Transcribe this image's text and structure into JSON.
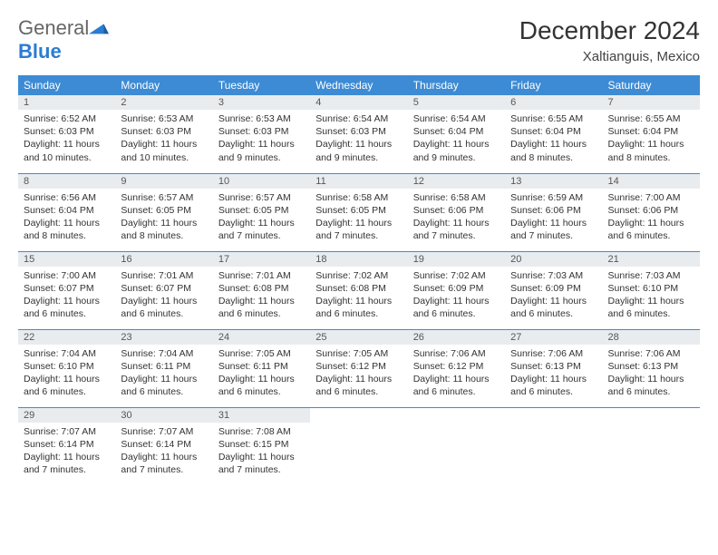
{
  "brand": {
    "general": "General",
    "blue": "Blue"
  },
  "title": "December 2024",
  "location": "Xaltianguis, Mexico",
  "colors": {
    "header_bg": "#3d8bd4",
    "header_text": "#ffffff",
    "daynum_bg": "#e9ecef",
    "rule": "#3d8bd4",
    "logo_blue": "#2b7cd3",
    "body_text": "#333333"
  },
  "weekdays": [
    "Sunday",
    "Monday",
    "Tuesday",
    "Wednesday",
    "Thursday",
    "Friday",
    "Saturday"
  ],
  "weeks": [
    [
      {
        "d": "1",
        "sr": "Sunrise: 6:52 AM",
        "ss": "Sunset: 6:03 PM",
        "dl1": "Daylight: 11 hours",
        "dl2": "and 10 minutes."
      },
      {
        "d": "2",
        "sr": "Sunrise: 6:53 AM",
        "ss": "Sunset: 6:03 PM",
        "dl1": "Daylight: 11 hours",
        "dl2": "and 10 minutes."
      },
      {
        "d": "3",
        "sr": "Sunrise: 6:53 AM",
        "ss": "Sunset: 6:03 PM",
        "dl1": "Daylight: 11 hours",
        "dl2": "and 9 minutes."
      },
      {
        "d": "4",
        "sr": "Sunrise: 6:54 AM",
        "ss": "Sunset: 6:03 PM",
        "dl1": "Daylight: 11 hours",
        "dl2": "and 9 minutes."
      },
      {
        "d": "5",
        "sr": "Sunrise: 6:54 AM",
        "ss": "Sunset: 6:04 PM",
        "dl1": "Daylight: 11 hours",
        "dl2": "and 9 minutes."
      },
      {
        "d": "6",
        "sr": "Sunrise: 6:55 AM",
        "ss": "Sunset: 6:04 PM",
        "dl1": "Daylight: 11 hours",
        "dl2": "and 8 minutes."
      },
      {
        "d": "7",
        "sr": "Sunrise: 6:55 AM",
        "ss": "Sunset: 6:04 PM",
        "dl1": "Daylight: 11 hours",
        "dl2": "and 8 minutes."
      }
    ],
    [
      {
        "d": "8",
        "sr": "Sunrise: 6:56 AM",
        "ss": "Sunset: 6:04 PM",
        "dl1": "Daylight: 11 hours",
        "dl2": "and 8 minutes."
      },
      {
        "d": "9",
        "sr": "Sunrise: 6:57 AM",
        "ss": "Sunset: 6:05 PM",
        "dl1": "Daylight: 11 hours",
        "dl2": "and 8 minutes."
      },
      {
        "d": "10",
        "sr": "Sunrise: 6:57 AM",
        "ss": "Sunset: 6:05 PM",
        "dl1": "Daylight: 11 hours",
        "dl2": "and 7 minutes."
      },
      {
        "d": "11",
        "sr": "Sunrise: 6:58 AM",
        "ss": "Sunset: 6:05 PM",
        "dl1": "Daylight: 11 hours",
        "dl2": "and 7 minutes."
      },
      {
        "d": "12",
        "sr": "Sunrise: 6:58 AM",
        "ss": "Sunset: 6:06 PM",
        "dl1": "Daylight: 11 hours",
        "dl2": "and 7 minutes."
      },
      {
        "d": "13",
        "sr": "Sunrise: 6:59 AM",
        "ss": "Sunset: 6:06 PM",
        "dl1": "Daylight: 11 hours",
        "dl2": "and 7 minutes."
      },
      {
        "d": "14",
        "sr": "Sunrise: 7:00 AM",
        "ss": "Sunset: 6:06 PM",
        "dl1": "Daylight: 11 hours",
        "dl2": "and 6 minutes."
      }
    ],
    [
      {
        "d": "15",
        "sr": "Sunrise: 7:00 AM",
        "ss": "Sunset: 6:07 PM",
        "dl1": "Daylight: 11 hours",
        "dl2": "and 6 minutes."
      },
      {
        "d": "16",
        "sr": "Sunrise: 7:01 AM",
        "ss": "Sunset: 6:07 PM",
        "dl1": "Daylight: 11 hours",
        "dl2": "and 6 minutes."
      },
      {
        "d": "17",
        "sr": "Sunrise: 7:01 AM",
        "ss": "Sunset: 6:08 PM",
        "dl1": "Daylight: 11 hours",
        "dl2": "and 6 minutes."
      },
      {
        "d": "18",
        "sr": "Sunrise: 7:02 AM",
        "ss": "Sunset: 6:08 PM",
        "dl1": "Daylight: 11 hours",
        "dl2": "and 6 minutes."
      },
      {
        "d": "19",
        "sr": "Sunrise: 7:02 AM",
        "ss": "Sunset: 6:09 PM",
        "dl1": "Daylight: 11 hours",
        "dl2": "and 6 minutes."
      },
      {
        "d": "20",
        "sr": "Sunrise: 7:03 AM",
        "ss": "Sunset: 6:09 PM",
        "dl1": "Daylight: 11 hours",
        "dl2": "and 6 minutes."
      },
      {
        "d": "21",
        "sr": "Sunrise: 7:03 AM",
        "ss": "Sunset: 6:10 PM",
        "dl1": "Daylight: 11 hours",
        "dl2": "and 6 minutes."
      }
    ],
    [
      {
        "d": "22",
        "sr": "Sunrise: 7:04 AM",
        "ss": "Sunset: 6:10 PM",
        "dl1": "Daylight: 11 hours",
        "dl2": "and 6 minutes."
      },
      {
        "d": "23",
        "sr": "Sunrise: 7:04 AM",
        "ss": "Sunset: 6:11 PM",
        "dl1": "Daylight: 11 hours",
        "dl2": "and 6 minutes."
      },
      {
        "d": "24",
        "sr": "Sunrise: 7:05 AM",
        "ss": "Sunset: 6:11 PM",
        "dl1": "Daylight: 11 hours",
        "dl2": "and 6 minutes."
      },
      {
        "d": "25",
        "sr": "Sunrise: 7:05 AM",
        "ss": "Sunset: 6:12 PM",
        "dl1": "Daylight: 11 hours",
        "dl2": "and 6 minutes."
      },
      {
        "d": "26",
        "sr": "Sunrise: 7:06 AM",
        "ss": "Sunset: 6:12 PM",
        "dl1": "Daylight: 11 hours",
        "dl2": "and 6 minutes."
      },
      {
        "d": "27",
        "sr": "Sunrise: 7:06 AM",
        "ss": "Sunset: 6:13 PM",
        "dl1": "Daylight: 11 hours",
        "dl2": "and 6 minutes."
      },
      {
        "d": "28",
        "sr": "Sunrise: 7:06 AM",
        "ss": "Sunset: 6:13 PM",
        "dl1": "Daylight: 11 hours",
        "dl2": "and 6 minutes."
      }
    ],
    [
      {
        "d": "29",
        "sr": "Sunrise: 7:07 AM",
        "ss": "Sunset: 6:14 PM",
        "dl1": "Daylight: 11 hours",
        "dl2": "and 7 minutes."
      },
      {
        "d": "30",
        "sr": "Sunrise: 7:07 AM",
        "ss": "Sunset: 6:14 PM",
        "dl1": "Daylight: 11 hours",
        "dl2": "and 7 minutes."
      },
      {
        "d": "31",
        "sr": "Sunrise: 7:08 AM",
        "ss": "Sunset: 6:15 PM",
        "dl1": "Daylight: 11 hours",
        "dl2": "and 7 minutes."
      },
      null,
      null,
      null,
      null
    ]
  ]
}
